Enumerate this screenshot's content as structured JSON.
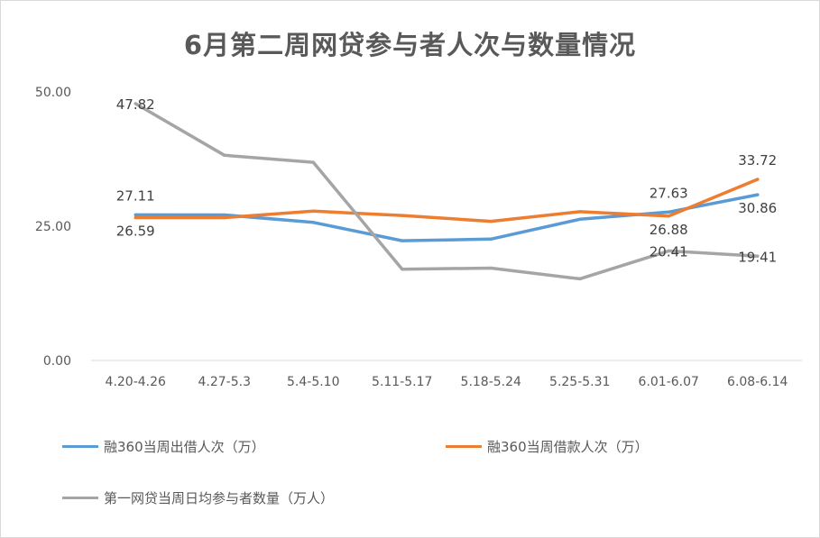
{
  "chart_data": {
    "type": "line",
    "title": "6月第二周网贷参与者人次与数量情况",
    "categories": [
      "4.20-4.26",
      "4.27-5.3",
      "5.4-5.10",
      "5.11-5.17",
      "5.18-5.24",
      "5.25-5.31",
      "6.01-6.07",
      "6.08-6.14"
    ],
    "ylim": [
      0,
      50
    ],
    "yticks": [
      "0.00",
      "25.00",
      "50.00"
    ],
    "grid": false,
    "legend_position": "bottom",
    "series": [
      {
        "name": "融360当周出借人次（万）",
        "color": "#5b9bd5",
        "values": [
          27.11,
          27.1,
          25.7,
          22.3,
          22.6,
          26.3,
          27.63,
          30.86
        ],
        "labels": [
          {
            "index": 0,
            "text": "27.11",
            "pos": "above"
          },
          {
            "index": 6,
            "text": "27.63",
            "pos": "above"
          },
          {
            "index": 7,
            "text": "30.86",
            "pos": "below"
          }
        ]
      },
      {
        "name": "融360当周借款人次（万）",
        "color": "#ed7d31",
        "values": [
          26.59,
          26.6,
          27.8,
          27.0,
          25.9,
          27.7,
          26.88,
          33.72
        ],
        "labels": [
          {
            "index": 0,
            "text": "26.59",
            "pos": "below"
          },
          {
            "index": 6,
            "text": "26.88",
            "pos": "below"
          },
          {
            "index": 7,
            "text": "33.72",
            "pos": "above"
          }
        ]
      },
      {
        "name": "第一网贷当周日均参与者数量（万人）",
        "color": "#a5a5a5",
        "values": [
          47.82,
          38.2,
          36.9,
          17.0,
          17.2,
          15.2,
          20.41,
          19.41
        ],
        "labels": [
          {
            "index": 0,
            "text": "47.82",
            "pos": "at"
          },
          {
            "index": 6,
            "text": "20.41",
            "pos": "at"
          },
          {
            "index": 7,
            "text": "19.41",
            "pos": "at"
          }
        ]
      }
    ]
  }
}
